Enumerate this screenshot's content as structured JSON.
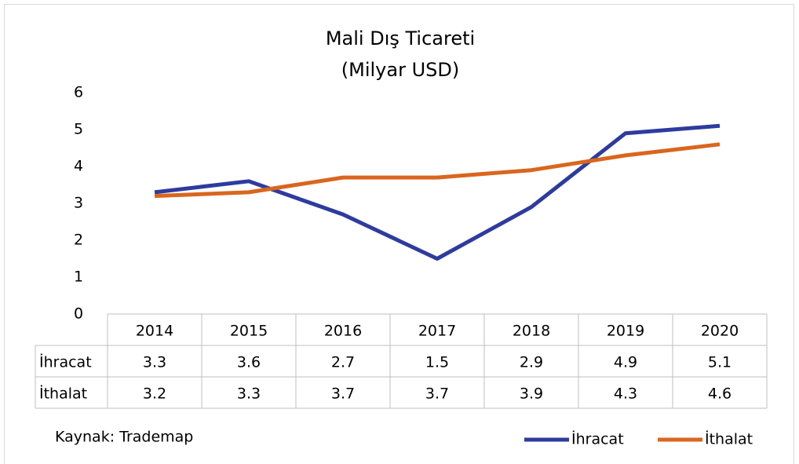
{
  "chart_data": {
    "type": "line",
    "title": "Mali Dış Ticareti",
    "subtitle": "(Milyar USD)",
    "categories": [
      "2014",
      "2015",
      "2016",
      "2017",
      "2018",
      "2019",
      "2020"
    ],
    "series": [
      {
        "name": "İhracat",
        "color": "#2e3b9e",
        "values": [
          3.3,
          3.6,
          2.7,
          1.5,
          2.9,
          4.9,
          5.1
        ]
      },
      {
        "name": "İthalat",
        "color": "#d9661f",
        "values": [
          3.2,
          3.3,
          3.7,
          3.7,
          3.9,
          4.3,
          4.6
        ]
      }
    ],
    "ylim": [
      0,
      6
    ],
    "yticks": [
      0,
      1,
      2,
      3,
      4,
      5,
      6
    ],
    "legend": "bottom-right",
    "note": "Kaynak: Trademap"
  }
}
